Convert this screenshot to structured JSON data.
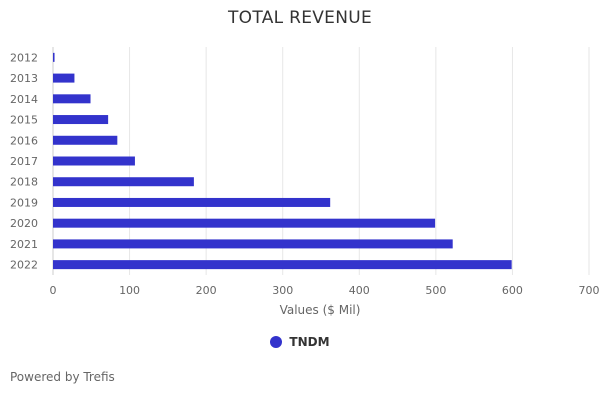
{
  "colors": {
    "bar": "#3333cc",
    "grid": "#e6e6e6",
    "text": "#666666",
    "title": "#333333"
  },
  "footer": {
    "text": "Powered by Trefis"
  },
  "chart_data": {
    "type": "bar",
    "orientation": "horizontal",
    "title": "TOTAL REVENUE",
    "xlabel": "Values ($ Mil)",
    "ylabel": "",
    "xlim": [
      0,
      700
    ],
    "xticks": [
      0,
      100,
      200,
      300,
      400,
      500,
      600,
      700
    ],
    "grid": true,
    "legend_position": "bottom-center",
    "categories": [
      "2012",
      "2013",
      "2014",
      "2015",
      "2016",
      "2017",
      "2018",
      "2019",
      "2020",
      "2021",
      "2022"
    ],
    "series": [
      {
        "name": "TNDM",
        "values": [
          2,
          28,
          49,
          72,
          84,
          107,
          184,
          362,
          499,
          522,
          599
        ]
      }
    ]
  }
}
